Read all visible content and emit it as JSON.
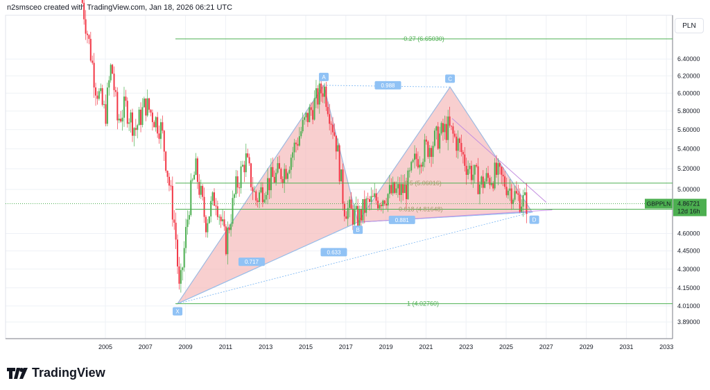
{
  "header": {
    "text": "n2smsceo created with TradingView.com, Jan 18, 2026 06:21 UTC"
  },
  "currency_button": "PLN",
  "symbol": {
    "name": "GBPPLN",
    "price": "4.86721",
    "countdown": "12d 16h",
    "color": "#4caf50"
  },
  "colors": {
    "up": "#4caf50",
    "down": "#f23645",
    "pattern_fill": "#f5b5b5",
    "fib": "#4caf50",
    "label": "#90c2f5",
    "wedge": "#c38fe0"
  },
  "price_axis": [
    "6.40000",
    "6.20000",
    "6.00000",
    "5.80000",
    "5.60000",
    "5.40000",
    "5.20000",
    "5.00000",
    "4.60000",
    "4.45000",
    "4.30000",
    "4.15000",
    "4.01000",
    "3.89000"
  ],
  "time_axis": [
    "2005",
    "2007",
    "2009",
    "2011",
    "2013",
    "2015",
    "2017",
    "2019",
    "2021",
    "2023",
    "2025",
    "2027",
    "2029",
    "2031",
    "2033"
  ],
  "fib_levels": [
    {
      "ratio": -0.27,
      "price": 6.6503,
      "label": "-0.27 (6.65030)"
    },
    {
      "ratio": 0.5,
      "price": 5.06016,
      "label": "0.5 (5.06016)"
    },
    {
      "ratio": 0.618,
      "price": 4.81648,
      "label": "0.618 (4.81648)"
    },
    {
      "ratio": 1,
      "price": 4.0276,
      "label": "1 (4.02760)"
    }
  ],
  "pattern": {
    "points": [
      {
        "name": "X",
        "t": 2008.6,
        "p": 4.0276
      },
      {
        "name": "A",
        "t": 2015.9,
        "p": 6.09
      },
      {
        "name": "B",
        "t": 2017.6,
        "p": 4.7
      },
      {
        "name": "C",
        "t": 2022.2,
        "p": 6.07
      },
      {
        "name": "D",
        "t": 2026.3,
        "p": 4.79
      }
    ],
    "ratios": [
      {
        "label": "0.988",
        "t": 2019.1,
        "p": 6.09
      },
      {
        "label": "0.717",
        "t": 2012.3,
        "p": 4.36
      },
      {
        "label": "0.633",
        "t": 2016.4,
        "p": 4.44
      },
      {
        "label": "0.881",
        "t": 2019.8,
        "p": 4.72
      }
    ]
  },
  "price_path": [
    [
      2003.8,
      7.2
    ],
    [
      2004.5,
      6.1
    ],
    [
      2005.0,
      5.75
    ],
    [
      2005.3,
      6.35
    ],
    [
      2005.6,
      5.7
    ],
    [
      2006.0,
      5.85
    ],
    [
      2006.5,
      5.6
    ],
    [
      2007.0,
      5.88
    ],
    [
      2007.8,
      5.6
    ],
    [
      2008.5,
      4.6
    ],
    [
      2008.7,
      4.08
    ],
    [
      2009.2,
      4.9
    ],
    [
      2009.5,
      5.2
    ],
    [
      2010.0,
      4.7
    ],
    [
      2010.5,
      4.95
    ],
    [
      2011.0,
      4.5
    ],
    [
      2011.5,
      5.0
    ],
    [
      2012.0,
      5.3
    ],
    [
      2012.5,
      4.9
    ],
    [
      2013.0,
      5.05
    ],
    [
      2014.0,
      5.2
    ],
    [
      2015.0,
      5.7
    ],
    [
      2015.9,
      6.08
    ],
    [
      2016.5,
      5.5
    ],
    [
      2016.9,
      4.85
    ],
    [
      2017.6,
      4.72
    ],
    [
      2018.0,
      4.85
    ],
    [
      2019.0,
      4.95
    ],
    [
      2020.0,
      5.0
    ],
    [
      2020.5,
      5.3
    ],
    [
      2021.0,
      5.4
    ],
    [
      2022.1,
      5.62
    ],
    [
      2022.6,
      5.45
    ],
    [
      2023.0,
      5.25
    ],
    [
      2023.7,
      5.05
    ],
    [
      2024.5,
      5.15
    ],
    [
      2025.0,
      5.05
    ],
    [
      2025.5,
      4.93
    ],
    [
      2026.05,
      4.867
    ]
  ],
  "logo": "TradingView"
}
